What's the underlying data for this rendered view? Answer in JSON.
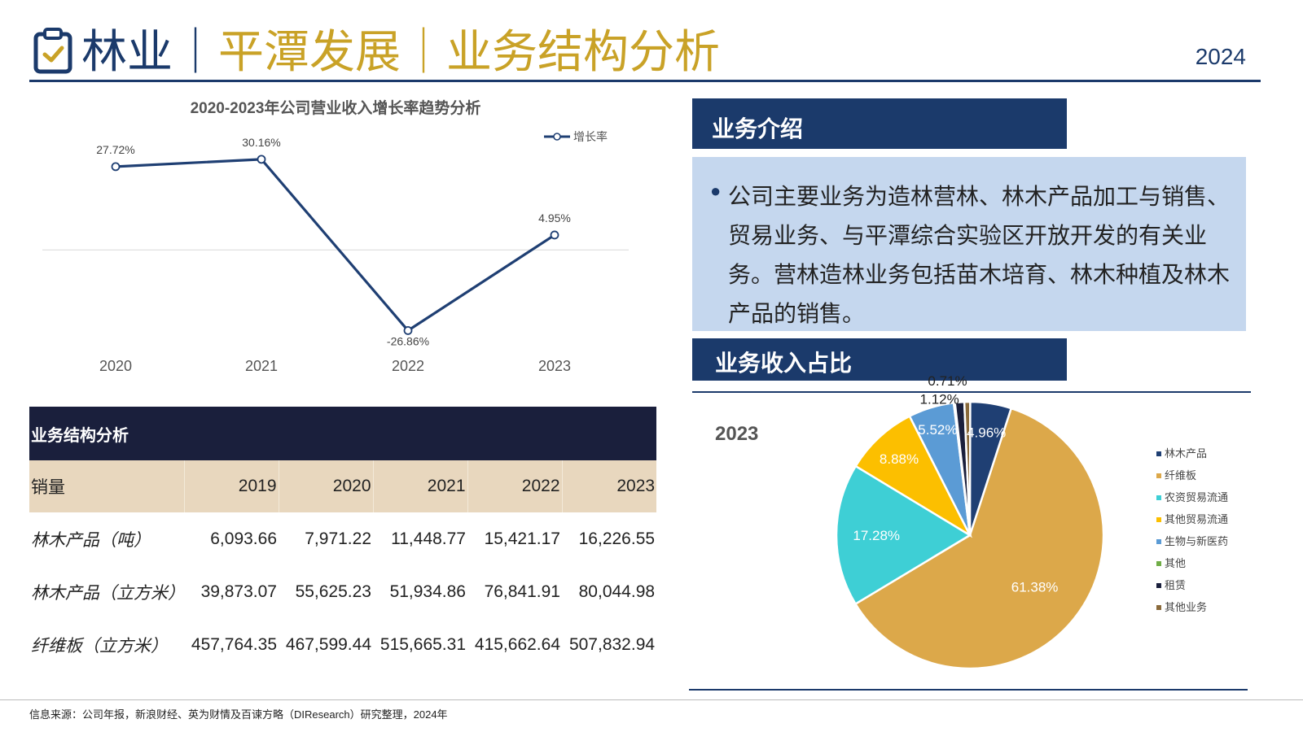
{
  "header": {
    "title_segments": [
      {
        "text": "林业",
        "tone": "main"
      },
      {
        "text": "｜",
        "tone": "main"
      },
      {
        "text": "平潭发展",
        "tone": "gold"
      },
      {
        "text": "｜",
        "tone": "gold"
      },
      {
        "text": "业务结构分析",
        "tone": "gold"
      }
    ],
    "year": "2024"
  },
  "colors": {
    "navy": "#1b3a6b",
    "gold": "#c9a227",
    "table_title_bg": "#1a1f3c",
    "table_header_bg": "#e8d7be",
    "intro_box_bg": "#c5d7ee"
  },
  "icons": [
    "clipboard-check-icon"
  ],
  "chart_data": [
    {
      "type": "line",
      "title": "2020-2023年公司营业收入增长率趋势分析",
      "categories": [
        "2020",
        "2021",
        "2022",
        "2023"
      ],
      "series": [
        {
          "name": "增长率",
          "values": [
            27.72,
            30.16,
            -26.86,
            4.95
          ],
          "labels": [
            "27.72%",
            "30.16%",
            "-26.86%",
            "4.95%"
          ],
          "color": "#1f3f73"
        }
      ],
      "xlabel": "",
      "ylabel": "",
      "ylim": [
        -30,
        35
      ],
      "grid": false,
      "legend": "top-right"
    },
    {
      "type": "pie",
      "title": "2023",
      "categories": [
        "林木产品",
        "纤维板",
        "农资贸易流通",
        "其他贸易流通",
        "生物与新医药",
        "其他",
        "租赁",
        "其他业务"
      ],
      "values": [
        4.96,
        61.38,
        17.28,
        8.88,
        5.52,
        0.15,
        1.12,
        0.71
      ],
      "labels": [
        "4.96%",
        "61.38%",
        "17.28%",
        "8.88%",
        "5.52%",
        "",
        "1.12%",
        "0.71%"
      ],
      "colors": [
        "#1f3f73",
        "#dca84a",
        "#3ecfd5",
        "#fcbf00",
        "#5b9bd5",
        "#70ad47",
        "#1a1f3c",
        "#8a6a3b"
      ],
      "legend": "right"
    }
  ],
  "table": {
    "title": "业务结构分析",
    "header": [
      "销量",
      "2019",
      "2020",
      "2021",
      "2022",
      "2023"
    ],
    "rows": [
      [
        "林木产品（吨）",
        "6,093.66",
        "7,971.22",
        "11,448.77",
        "15,421.17",
        "16,226.55"
      ],
      [
        "林木产品（立方米）",
        "39,873.07",
        "55,625.23",
        "51,934.86",
        "76,841.91",
        "80,044.98"
      ],
      [
        "纤维板（立方米）",
        "457,764.35",
        "467,599.44",
        "515,665.31",
        "415,662.64",
        "507,832.94"
      ]
    ]
  },
  "intro": {
    "header": "业务介绍",
    "bullet": "●",
    "text": "公司主要业务为造林营林、林木产品加工与销售、贸易业务、与平潭综合实验区开放开发的有关业务。营林造林业务包括苗木培育、林木种植及林木产品的销售。"
  },
  "share": {
    "header": "业务收入占比",
    "year": "2023"
  },
  "footer": {
    "source": "信息来源：公司年报，新浪财经、英为财情及百谏方略（DIResearch）研究整理，2024年"
  }
}
